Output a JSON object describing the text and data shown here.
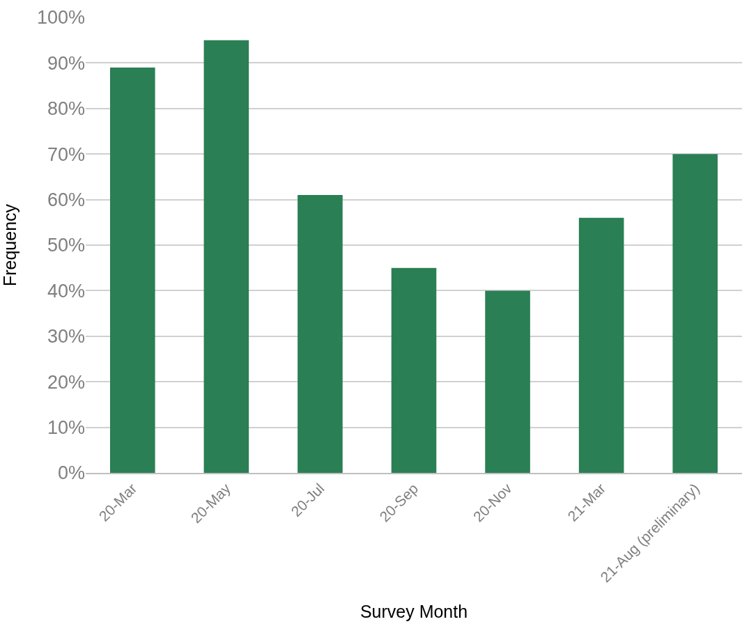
{
  "chart_data": {
    "type": "bar",
    "xlabel": "Survey Month",
    "ylabel": "Frequency",
    "categories": [
      "20-Mar",
      "20-May",
      "20-Jul",
      "20-Sep",
      "20-Nov",
      "21-Mar",
      "21-Aug (preliminary)"
    ],
    "values": [
      89,
      95,
      61,
      45,
      40,
      56,
      70
    ],
    "color": "#2a7f54",
    "ylim": [
      0,
      100
    ],
    "yticks": [
      {
        "value": 0,
        "label": "0%"
      },
      {
        "value": 10,
        "label": "10%"
      },
      {
        "value": 20,
        "label": "20%"
      },
      {
        "value": 30,
        "label": "30%"
      },
      {
        "value": 40,
        "label": "40%"
      },
      {
        "value": 50,
        "label": "50%"
      },
      {
        "value": 60,
        "label": "60%"
      },
      {
        "value": 70,
        "label": "70%"
      },
      {
        "value": 80,
        "label": "80%"
      },
      {
        "value": 90,
        "label": "90%"
      },
      {
        "value": 100,
        "label": "100%"
      }
    ],
    "grid": "y"
  }
}
